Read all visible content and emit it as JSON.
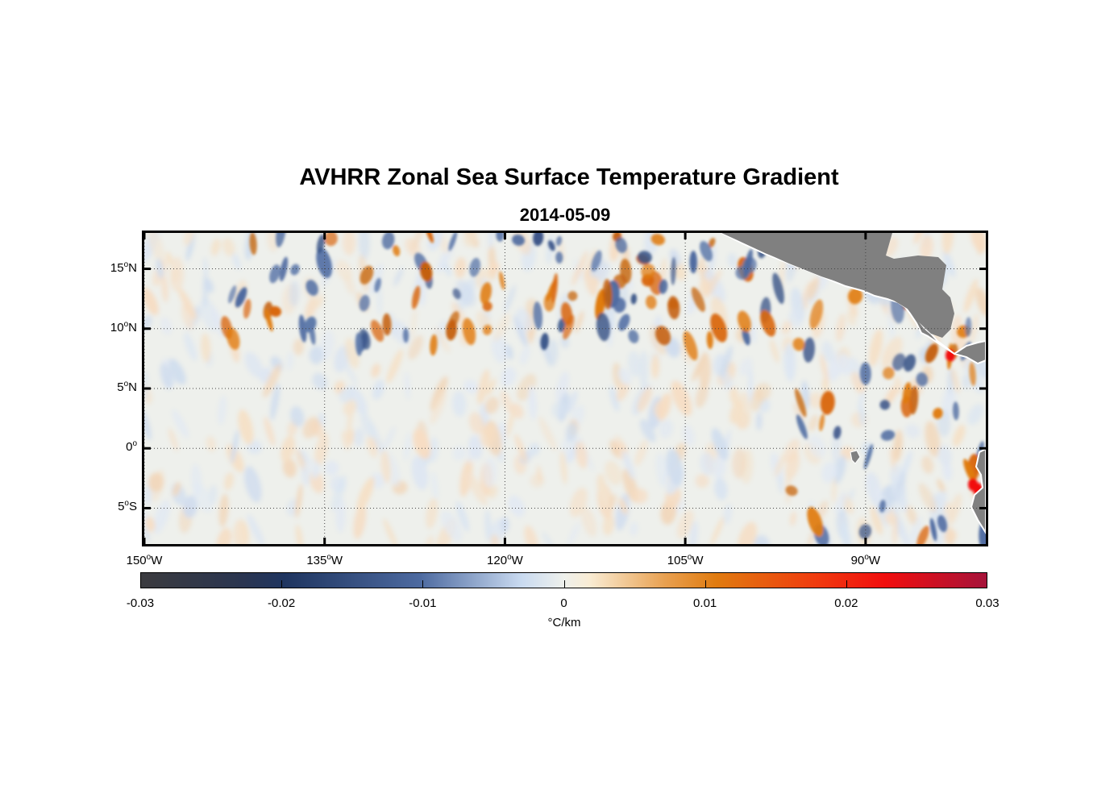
{
  "title": "AVHRR Zonal Sea Surface Temperature Gradient",
  "subtitle": "2014-05-09",
  "map": {
    "projection": "equirectangular",
    "lon_range": [
      -150,
      -80
    ],
    "lat_range": [
      -8,
      18
    ],
    "grid": "dotted",
    "land_color": "#808080",
    "lat_ticks": [
      {
        "value": 15,
        "text": "15",
        "suffix": "N"
      },
      {
        "value": 10,
        "text": "10",
        "suffix": "N"
      },
      {
        "value": 5,
        "text": "5",
        "suffix": "N"
      },
      {
        "value": 0,
        "text": "0",
        "suffix": ""
      },
      {
        "value": -5,
        "text": "5",
        "suffix": "S"
      }
    ],
    "lon_ticks": [
      {
        "value": -150,
        "text": "150",
        "suffix": "W"
      },
      {
        "value": -135,
        "text": "135",
        "suffix": "W"
      },
      {
        "value": -120,
        "text": "120",
        "suffix": "W"
      },
      {
        "value": -105,
        "text": "105",
        "suffix": "W"
      },
      {
        "value": -90,
        "text": "90",
        "suffix": "W"
      }
    ],
    "degree_symbol": "o"
  },
  "colorbar": {
    "range": [
      -0.03,
      0.03
    ],
    "tick_labels": [
      "-0.03",
      "-0.02",
      "-0.01",
      "0",
      "0.01",
      "0.02",
      "0.03"
    ],
    "units": "°C/km",
    "colors": [
      "#3b3b3f",
      "#1f3560",
      "#4d6aa0",
      "#c9daf0",
      "#f7f2e6",
      "#e07b10",
      "#f10e0e",
      "#a6133a"
    ]
  }
}
